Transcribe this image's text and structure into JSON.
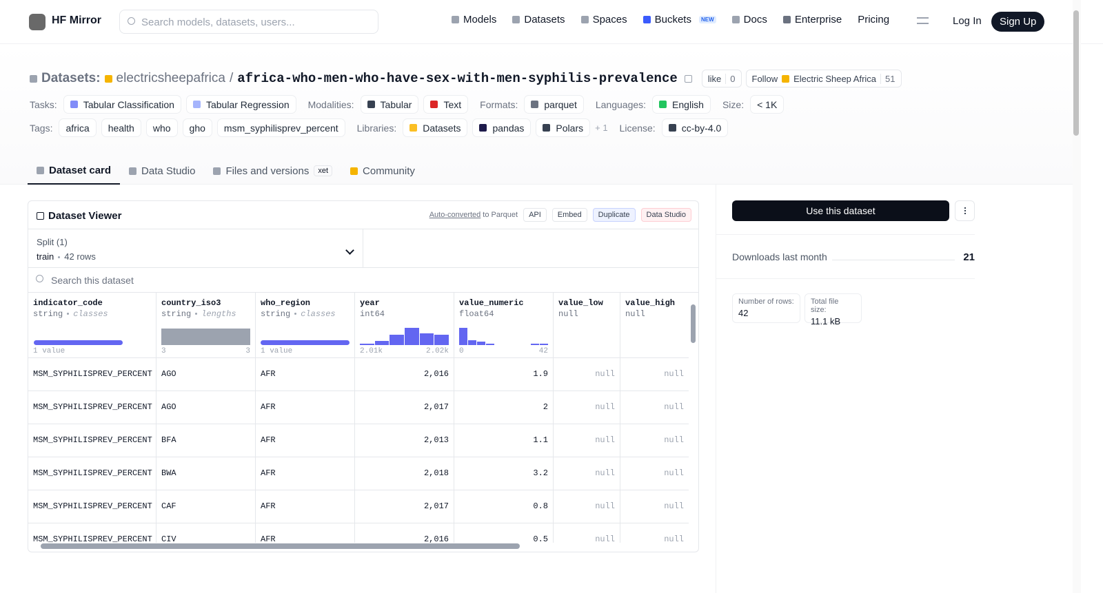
{
  "nav": {
    "brand": "HF Mirror",
    "search_placeholder": "Search models, datasets, users...",
    "links": [
      "Models",
      "Datasets",
      "Spaces",
      "Buckets",
      "Docs",
      "Enterprise",
      "Pricing"
    ],
    "buckets_badge": "NEW",
    "login": "Log In",
    "signup": "Sign Up"
  },
  "header": {
    "section": "Datasets:",
    "owner": "electricsheepafrica",
    "separator": "/",
    "name": "africa-who-men-who-have-sex-with-men-syphilis-prevalence",
    "like": "like",
    "likes": "0",
    "follow": "Follow",
    "follow_org": "Electric Sheep Africa",
    "followers": "51"
  },
  "meta": {
    "tasks_label": "Tasks:",
    "tasks": [
      "Tabular Classification",
      "Tabular Regression"
    ],
    "modalities_label": "Modalities:",
    "modalities": [
      "Tabular",
      "Text"
    ],
    "formats_label": "Formats:",
    "formats": [
      "parquet"
    ],
    "languages_label": "Languages:",
    "languages": [
      "English"
    ],
    "size_label": "Size:",
    "size": "< 1K",
    "tags_label": "Tags:",
    "tags": [
      "africa",
      "health",
      "who",
      "gho",
      "msm_syphilisprev_percent"
    ],
    "libraries_label": "Libraries:",
    "libraries": [
      "Datasets",
      "pandas",
      "Polars"
    ],
    "libraries_more": "+ 1",
    "license_label": "License:",
    "license": "cc-by-4.0"
  },
  "tabs": [
    "Dataset card",
    "Data Studio",
    "Files and versions",
    "Community"
  ],
  "xet_badge": "xet",
  "viewer": {
    "title": "Dataset Viewer",
    "auto_converted": "Auto-converted",
    "to_parquet": "to Parquet",
    "buttons": [
      "API",
      "Embed",
      "Duplicate",
      "Data Studio"
    ],
    "split_label": "Split (1)",
    "split": "train",
    "rows_label": "42 rows",
    "search_placeholder": "Search this dataset",
    "columns": [
      {
        "name": "indicator_code",
        "type": "string",
        "stat": "classes",
        "min_label": "1 value"
      },
      {
        "name": "country_iso3",
        "type": "string",
        "stat": "lengths",
        "min_label": "3",
        "max_label": "3"
      },
      {
        "name": "who_region",
        "type": "string",
        "stat": "classes",
        "min_label": "1 value"
      },
      {
        "name": "year",
        "type": "int64",
        "min_label": "2.01k",
        "max_label": "2.02k"
      },
      {
        "name": "value_numeric",
        "type": "float64",
        "min_label": "0",
        "max_label": "42"
      },
      {
        "name": "value_low",
        "type": "null"
      },
      {
        "name": "value_high",
        "type": "null"
      }
    ],
    "rows": [
      [
        "MSM_SYPHILISPREV_PERCENT",
        "AGO",
        "AFR",
        "2,016",
        "1.9",
        "null",
        "null"
      ],
      [
        "MSM_SYPHILISPREV_PERCENT",
        "AGO",
        "AFR",
        "2,017",
        "2",
        "null",
        "null"
      ],
      [
        "MSM_SYPHILISPREV_PERCENT",
        "BFA",
        "AFR",
        "2,013",
        "1.1",
        "null",
        "null"
      ],
      [
        "MSM_SYPHILISPREV_PERCENT",
        "BWA",
        "AFR",
        "2,018",
        "3.2",
        "null",
        "null"
      ],
      [
        "MSM_SYPHILISPREV_PERCENT",
        "CAF",
        "AFR",
        "2,017",
        "0.8",
        "null",
        "null"
      ],
      [
        "MSM_SYPHILISPREV_PERCENT",
        "CIV",
        "AFR",
        "2,016",
        "0.5",
        "null",
        "null"
      ]
    ]
  },
  "sidebar": {
    "use_button": "Use this dataset",
    "downloads_label": "Downloads last month",
    "downloads": "21",
    "num_rows_label": "Number of rows:",
    "num_rows": "42",
    "file_size_label": "Total file size:",
    "file_size": "11.1 kB"
  }
}
